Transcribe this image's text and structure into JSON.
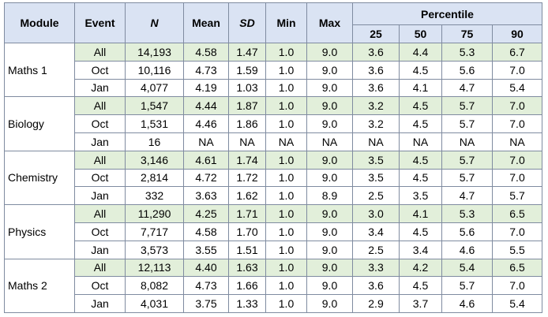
{
  "headers": {
    "module": "Module",
    "event": "Event",
    "n": "N",
    "mean": "Mean",
    "sd": "SD",
    "min": "Min",
    "max": "Max",
    "percentile": "Percentile",
    "p25": "25",
    "p50": "50",
    "p75": "75",
    "p90": "90"
  },
  "modules": [
    {
      "name": "Maths 1",
      "rows": [
        {
          "event": "All",
          "n": "14,193",
          "mean": "4.58",
          "sd": "1.47",
          "min": "1.0",
          "max": "9.0",
          "p25": "3.6",
          "p50": "4.4",
          "p75": "5.3",
          "p90": "6.7"
        },
        {
          "event": "Oct",
          "n": "10,116",
          "mean": "4.73",
          "sd": "1.59",
          "min": "1.0",
          "max": "9.0",
          "p25": "3.6",
          "p50": "4.5",
          "p75": "5.6",
          "p90": "7.0"
        },
        {
          "event": "Jan",
          "n": "4,077",
          "mean": "4.19",
          "sd": "1.03",
          "min": "1.0",
          "max": "9.0",
          "p25": "3.6",
          "p50": "4.1",
          "p75": "4.7",
          "p90": "5.4"
        }
      ]
    },
    {
      "name": "Biology",
      "rows": [
        {
          "event": "All",
          "n": "1,547",
          "mean": "4.44",
          "sd": "1.87",
          "min": "1.0",
          "max": "9.0",
          "p25": "3.2",
          "p50": "4.5",
          "p75": "5.7",
          "p90": "7.0"
        },
        {
          "event": "Oct",
          "n": "1,531",
          "mean": "4.46",
          "sd": "1.86",
          "min": "1.0",
          "max": "9.0",
          "p25": "3.2",
          "p50": "4.5",
          "p75": "5.7",
          "p90": "7.0"
        },
        {
          "event": "Jan",
          "n": "16",
          "mean": "NA",
          "sd": "NA",
          "min": "NA",
          "max": "NA",
          "p25": "NA",
          "p50": "NA",
          "p75": "NA",
          "p90": "NA"
        }
      ]
    },
    {
      "name": "Chemistry",
      "rows": [
        {
          "event": "All",
          "n": "3,146",
          "mean": "4.61",
          "sd": "1.74",
          "min": "1.0",
          "max": "9.0",
          "p25": "3.5",
          "p50": "4.5",
          "p75": "5.7",
          "p90": "7.0"
        },
        {
          "event": "Oct",
          "n": "2,814",
          "mean": "4.72",
          "sd": "1.72",
          "min": "1.0",
          "max": "9.0",
          "p25": "3.5",
          "p50": "4.5",
          "p75": "5.7",
          "p90": "7.0"
        },
        {
          "event": "Jan",
          "n": "332",
          "mean": "3.63",
          "sd": "1.62",
          "min": "1.0",
          "max": "8.9",
          "p25": "2.5",
          "p50": "3.5",
          "p75": "4.7",
          "p90": "5.7"
        }
      ]
    },
    {
      "name": "Physics",
      "rows": [
        {
          "event": "All",
          "n": "11,290",
          "mean": "4.25",
          "sd": "1.71",
          "min": "1.0",
          "max": "9.0",
          "p25": "3.0",
          "p50": "4.1",
          "p75": "5.3",
          "p90": "6.5"
        },
        {
          "event": "Oct",
          "n": "7,717",
          "mean": "4.58",
          "sd": "1.70",
          "min": "1.0",
          "max": "9.0",
          "p25": "3.4",
          "p50": "4.5",
          "p75": "5.6",
          "p90": "7.0"
        },
        {
          "event": "Jan",
          "n": "3,573",
          "mean": "3.55",
          "sd": "1.51",
          "min": "1.0",
          "max": "9.0",
          "p25": "2.5",
          "p50": "3.4",
          "p75": "4.6",
          "p90": "5.5"
        }
      ]
    },
    {
      "name": "Maths 2",
      "rows": [
        {
          "event": "All",
          "n": "12,113",
          "mean": "4.40",
          "sd": "1.63",
          "min": "1.0",
          "max": "9.0",
          "p25": "3.3",
          "p50": "4.2",
          "p75": "5.4",
          "p90": "6.5"
        },
        {
          "event": "Oct",
          "n": "8,082",
          "mean": "4.73",
          "sd": "1.66",
          "min": "1.0",
          "max": "9.0",
          "p25": "3.6",
          "p50": "4.5",
          "p75": "5.7",
          "p90": "7.0"
        },
        {
          "event": "Jan",
          "n": "4,031",
          "mean": "3.75",
          "sd": "1.33",
          "min": "1.0",
          "max": "9.0",
          "p25": "2.9",
          "p50": "3.7",
          "p75": "4.6",
          "p90": "5.4"
        }
      ]
    }
  ],
  "colors": {
    "header_bg": "#dae3f3",
    "all_row_bg": "#e2efda",
    "border": "#7f8ba0"
  }
}
